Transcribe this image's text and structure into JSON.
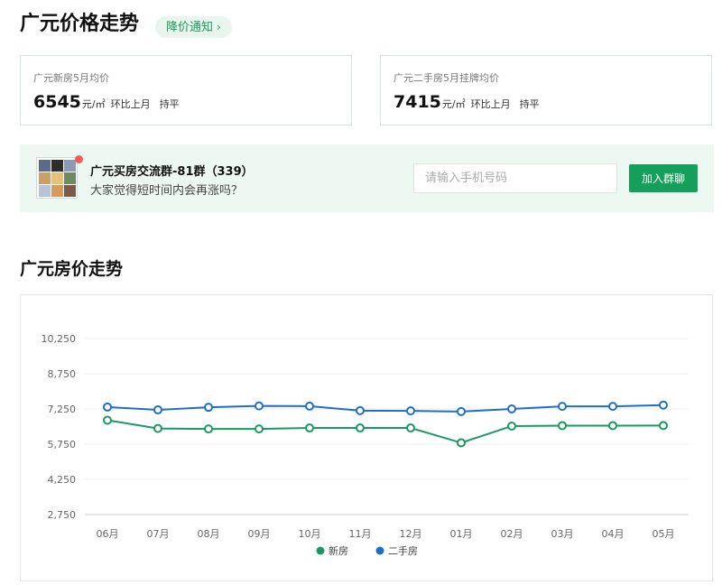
{
  "header": {
    "title": "广元价格走势",
    "notify_label": "降价通知",
    "notify_chevron": "›"
  },
  "stats": {
    "new_house": {
      "label": "广元新房5月均价",
      "price": "6545",
      "unit": "元/㎡",
      "compare_label": "环比上月",
      "trend": "持平"
    },
    "second_hand": {
      "label": "广元二手房5月挂牌均价",
      "price": "7415",
      "unit": "元/㎡",
      "compare_label": "环比上月",
      "trend": "持平"
    }
  },
  "group": {
    "name": "广元买房交流群-81群（339）",
    "description": "大家觉得短时间内会再涨吗？",
    "phone_placeholder": "请输入手机号码",
    "join_label": "加入群聊",
    "avatar_colors": [
      "#5a6b8c",
      "#2d2d2d",
      "#8a9bb5",
      "#c9a06a",
      "#e8c07a",
      "#6f8a5e",
      "#b8c4d6",
      "#d99a5b",
      "#7a5a4a"
    ]
  },
  "section": {
    "title": "广元房价走势"
  },
  "colors": {
    "accent_green": "#14a05a",
    "new_series": "#1a9a62",
    "second_series": "#1f6fc8"
  },
  "chart_data": {
    "type": "line",
    "categories": [
      "06月",
      "07月",
      "08月",
      "09月",
      "10月",
      "11月",
      "12月",
      "01月",
      "02月",
      "03月",
      "04月",
      "05月"
    ],
    "y_ticks": [
      "2,750",
      "4,250",
      "5,750",
      "7,250",
      "8,750",
      "10,250"
    ],
    "y_tick_values": [
      2750,
      4250,
      5750,
      7250,
      8750,
      10250
    ],
    "ylim": [
      2750,
      10250
    ],
    "grid": true,
    "legend_position": "bottom-center",
    "series": [
      {
        "name": "新房",
        "color": "#1a9a62",
        "values": [
          6770,
          6420,
          6400,
          6400,
          6440,
          6440,
          6440,
          5810,
          6520,
          6540,
          6540,
          6545
        ]
      },
      {
        "name": "二手房",
        "color": "#1f6fc8",
        "values": [
          7330,
          7210,
          7320,
          7380,
          7370,
          7180,
          7170,
          7140,
          7250,
          7360,
          7360,
          7415
        ]
      }
    ]
  }
}
